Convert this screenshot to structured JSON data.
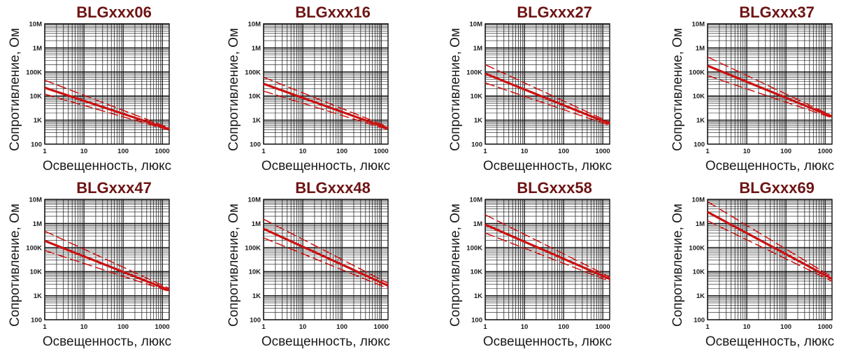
{
  "chart_data": [
    {
      "type": "line",
      "title": "BLGxxx06",
      "xlabel": "Освещенность, люкс",
      "ylabel": "Сопротивление, Ом",
      "x_scale": "log",
      "y_scale": "log",
      "xlim": [
        1,
        1500
      ],
      "ylim": [
        100,
        10000000
      ],
      "x_ticks": [
        "1",
        "10",
        "100",
        "1000"
      ],
      "y_ticks": [
        "100",
        "1K",
        "10K",
        "100K",
        "1M",
        "10M"
      ],
      "grid": true,
      "series": [
        {
          "style": "solid",
          "x": [
            1,
            1500
          ],
          "y": [
            22000,
            420
          ]
        },
        {
          "style": "dashed",
          "x": [
            1,
            1500
          ],
          "y": [
            45000,
            470
          ]
        },
        {
          "style": "dashed",
          "x": [
            1,
            1500
          ],
          "y": [
            12000,
            380
          ]
        }
      ]
    },
    {
      "type": "line",
      "title": "BLGxxx16",
      "xlabel": "Освещенность, люкс",
      "ylabel": "Сопротивление, Ом",
      "x_scale": "log",
      "y_scale": "log",
      "xlim": [
        1,
        1500
      ],
      "ylim": [
        100,
        10000000
      ],
      "x_ticks": [
        "1",
        "10",
        "100",
        "1000"
      ],
      "y_ticks": [
        "100",
        "1K",
        "10K",
        "100K",
        "1M",
        "10M"
      ],
      "grid": true,
      "series": [
        {
          "style": "solid",
          "x": [
            1,
            1500
          ],
          "y": [
            32000,
            450
          ]
        },
        {
          "style": "dashed",
          "x": [
            1,
            1500
          ],
          "y": [
            60000,
            520
          ]
        },
        {
          "style": "dashed",
          "x": [
            1,
            1500
          ],
          "y": [
            16000,
            400
          ]
        }
      ]
    },
    {
      "type": "line",
      "title": "BLGxxx27",
      "xlabel": "Освещенность, люкс",
      "ylabel": "Сопротивление, Ом",
      "x_scale": "log",
      "y_scale": "log",
      "xlim": [
        1,
        1500
      ],
      "ylim": [
        100,
        10000000
      ],
      "x_ticks": [
        "1",
        "10",
        "100",
        "1000"
      ],
      "y_ticks": [
        "100",
        "1K",
        "10K",
        "100K",
        "1M",
        "10M"
      ],
      "grid": true,
      "series": [
        {
          "style": "solid",
          "x": [
            1,
            1500
          ],
          "y": [
            85000,
            700
          ]
        },
        {
          "style": "dashed",
          "x": [
            1,
            1500
          ],
          "y": [
            200000,
            800
          ]
        },
        {
          "style": "dashed",
          "x": [
            1,
            1500
          ],
          "y": [
            35000,
            600
          ]
        }
      ]
    },
    {
      "type": "line",
      "title": "BLGxxx37",
      "xlabel": "Освещенность, люкс",
      "ylabel": "Сопротивление, Ом",
      "x_scale": "log",
      "y_scale": "log",
      "xlim": [
        1,
        1500
      ],
      "ylim": [
        100,
        10000000
      ],
      "x_ticks": [
        "1",
        "10",
        "100",
        "1000"
      ],
      "y_ticks": [
        "100",
        "1K",
        "10K",
        "100K",
        "1M",
        "10M"
      ],
      "grid": true,
      "series": [
        {
          "style": "solid",
          "x": [
            1,
            1500
          ],
          "y": [
            180000,
            1400
          ]
        },
        {
          "style": "dashed",
          "x": [
            1,
            1500
          ],
          "y": [
            420000,
            1500
          ]
        },
        {
          "style": "dashed",
          "x": [
            1,
            1500
          ],
          "y": [
            70000,
            1250
          ]
        }
      ]
    },
    {
      "type": "line",
      "title": "BLGxxx47",
      "xlabel": "Освещенность, люкс",
      "ylabel": "Сопротивление, Ом",
      "x_scale": "log",
      "y_scale": "log",
      "xlim": [
        1,
        1500
      ],
      "ylim": [
        100,
        10000000
      ],
      "x_ticks": [
        "1",
        "10",
        "100",
        "1000"
      ],
      "y_ticks": [
        "100",
        "1K",
        "10K",
        "100K",
        "1M",
        "10M"
      ],
      "grid": true,
      "series": [
        {
          "style": "solid",
          "x": [
            1,
            1500
          ],
          "y": [
            190000,
            1700
          ]
        },
        {
          "style": "dashed",
          "x": [
            1,
            1500
          ],
          "y": [
            480000,
            2000
          ]
        },
        {
          "style": "dashed",
          "x": [
            1,
            1500
          ],
          "y": [
            75000,
            1500
          ]
        }
      ]
    },
    {
      "type": "line",
      "title": "BLGxxx48",
      "xlabel": "Освещенность, люкс",
      "ylabel": "Сопротивление, Ом",
      "x_scale": "log",
      "y_scale": "log",
      "xlim": [
        1,
        1500
      ],
      "ylim": [
        100,
        10000000
      ],
      "x_ticks": [
        "1",
        "10",
        "100",
        "1000"
      ],
      "y_ticks": [
        "100",
        "1K",
        "10K",
        "100K",
        "1M",
        "10M"
      ],
      "grid": true,
      "series": [
        {
          "style": "solid",
          "x": [
            1,
            1500
          ],
          "y": [
            600000,
            2600
          ]
        },
        {
          "style": "dashed",
          "x": [
            1,
            1500
          ],
          "y": [
            1500000,
            3300
          ]
        },
        {
          "style": "dashed",
          "x": [
            1,
            1500
          ],
          "y": [
            250000,
            2000
          ]
        }
      ]
    },
    {
      "type": "line",
      "title": "BLGxxx58",
      "xlabel": "Освещенность, люкс",
      "ylabel": "Сопротивление, Ом",
      "x_scale": "log",
      "y_scale": "log",
      "xlim": [
        1,
        1500
      ],
      "ylim": [
        100,
        10000000
      ],
      "x_ticks": [
        "1",
        "10",
        "100",
        "1000"
      ],
      "y_ticks": [
        "100",
        "1K",
        "10K",
        "100K",
        "1M",
        "10M"
      ],
      "grid": true,
      "series": [
        {
          "style": "solid",
          "x": [
            1,
            1500
          ],
          "y": [
            900000,
            5000
          ]
        },
        {
          "style": "dashed",
          "x": [
            1,
            1500
          ],
          "y": [
            2300000,
            6000
          ]
        },
        {
          "style": "dashed",
          "x": [
            1,
            1500
          ],
          "y": [
            400000,
            4000
          ]
        }
      ]
    },
    {
      "type": "line",
      "title": "BLGxxx69",
      "xlabel": "Освещенность, люкс",
      "ylabel": "Сопротивление, Ом",
      "x_scale": "log",
      "y_scale": "log",
      "xlim": [
        1,
        1500
      ],
      "ylim": [
        100,
        10000000
      ],
      "x_ticks": [
        "1",
        "10",
        "100",
        "1000"
      ],
      "y_ticks": [
        "100",
        "1K",
        "10K",
        "100K",
        "1M",
        "10M"
      ],
      "grid": true,
      "series": [
        {
          "style": "solid",
          "x": [
            1,
            1500
          ],
          "y": [
            3000000,
            5000
          ]
        },
        {
          "style": "dashed",
          "x": [
            1,
            1500
          ],
          "y": [
            8000000,
            6000
          ]
        },
        {
          "style": "dashed",
          "x": [
            1,
            1500
          ],
          "y": [
            1300000,
            4000
          ]
        }
      ]
    }
  ],
  "colors": {
    "curve": "#cc1111",
    "title": "#6e1414",
    "grid": "#111111"
  }
}
